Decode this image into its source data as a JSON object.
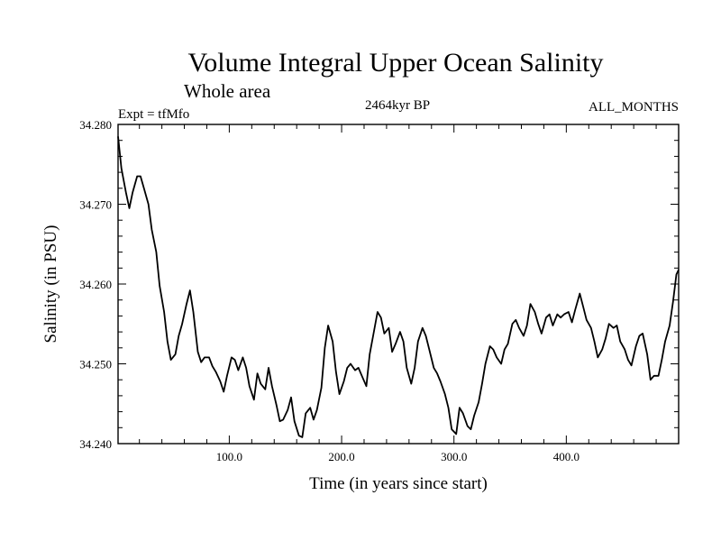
{
  "chart_data": {
    "type": "line",
    "title": "Volume Integral Upper Ocean Salinity",
    "subtitle": "Whole area",
    "experiment_label": "Expt = tfMfo",
    "period_label": "2464kyr BP",
    "months_label": "ALL_MONTHS",
    "xlabel": "Time (in years since start)",
    "ylabel": "Salinity (in PSU)",
    "xlim": [
      1,
      500
    ],
    "ylim": [
      34.24,
      34.28
    ],
    "x_ticks": [
      100,
      200,
      300,
      400
    ],
    "x_tick_labels": [
      "100.0",
      "200.0",
      "300.0",
      "400.0"
    ],
    "y_ticks": [
      34.24,
      34.25,
      34.26,
      34.27,
      34.28
    ],
    "y_tick_labels": [
      "34.240",
      "34.250",
      "34.260",
      "34.270",
      "34.280"
    ],
    "series": [
      {
        "name": "Volume Integral Upper Ocean Salinity",
        "x": [
          1,
          4,
          8,
          11,
          14,
          18,
          21,
          24,
          28,
          31,
          35,
          38,
          42,
          45,
          48,
          52,
          55,
          58,
          62,
          65,
          68,
          72,
          75,
          78,
          82,
          85,
          88,
          92,
          95,
          98,
          102,
          105,
          108,
          112,
          115,
          118,
          122,
          125,
          128,
          132,
          135,
          138,
          142,
          145,
          148,
          152,
          155,
          158,
          162,
          165,
          168,
          172,
          175,
          178,
          182,
          185,
          188,
          192,
          195,
          198,
          202,
          205,
          208,
          212,
          215,
          218,
          222,
          225,
          228,
          232,
          235,
          238,
          242,
          245,
          248,
          252,
          255,
          258,
          262,
          265,
          268,
          272,
          275,
          278,
          282,
          285,
          288,
          292,
          295,
          298,
          302,
          305,
          308,
          312,
          315,
          318,
          322,
          325,
          328,
          332,
          335,
          338,
          342,
          345,
          348,
          352,
          355,
          358,
          362,
          365,
          368,
          372,
          375,
          378,
          382,
          385,
          388,
          392,
          395,
          398,
          402,
          405,
          408,
          412,
          415,
          418,
          422,
          425,
          428,
          432,
          435,
          438,
          442,
          445,
          448,
          452,
          455,
          458,
          462,
          465,
          468,
          472,
          475,
          478,
          482,
          485,
          488,
          492,
          495,
          498,
          500
        ],
        "values": [
          34.2785,
          34.2745,
          34.2715,
          34.2695,
          34.2715,
          34.2735,
          34.2735,
          34.272,
          34.27,
          34.2668,
          34.264,
          34.2598,
          34.2565,
          34.2528,
          34.2505,
          34.2512,
          34.2535,
          34.255,
          34.2575,
          34.2592,
          34.2565,
          34.2515,
          34.2502,
          34.2508,
          34.2508,
          34.2497,
          34.249,
          34.2478,
          34.2465,
          34.2485,
          34.2508,
          34.2505,
          34.2492,
          34.2508,
          34.2495,
          34.2472,
          34.2455,
          34.2488,
          34.2475,
          34.2468,
          34.2495,
          34.2472,
          34.2448,
          34.2428,
          34.243,
          34.2442,
          34.2458,
          34.2428,
          34.241,
          34.2408,
          34.2438,
          34.2445,
          34.243,
          34.2442,
          34.247,
          34.252,
          34.2548,
          34.2528,
          34.249,
          34.2462,
          34.2478,
          34.2495,
          34.25,
          34.2492,
          34.2495,
          34.2485,
          34.2472,
          34.2512,
          34.2535,
          34.2565,
          34.2558,
          34.2538,
          34.2545,
          34.2515,
          34.2525,
          34.254,
          34.2528,
          34.2495,
          34.2475,
          34.2495,
          34.2528,
          34.2545,
          34.2535,
          34.2518,
          34.2495,
          34.2488,
          34.2478,
          34.2462,
          34.2445,
          34.2418,
          34.2412,
          34.2445,
          34.2438,
          34.2422,
          34.2418,
          34.2435,
          34.2452,
          34.2475,
          34.25,
          34.2522,
          34.2518,
          34.2508,
          34.25,
          34.2518,
          34.2525,
          34.255,
          34.2555,
          34.2545,
          34.2535,
          34.2548,
          34.2575,
          34.2565,
          34.255,
          34.2538,
          34.2558,
          34.2562,
          34.2548,
          34.2562,
          34.2558,
          34.2562,
          34.2565,
          34.2552,
          34.2568,
          34.2588,
          34.2572,
          34.2555,
          34.2545,
          34.2528,
          34.2508,
          34.2518,
          34.2532,
          34.255,
          34.2545,
          34.2548,
          34.2528,
          34.2518,
          34.2505,
          34.2498,
          34.2522,
          34.2535,
          34.2538,
          34.2512,
          34.248,
          34.2485,
          34.2485,
          34.2505,
          34.2528,
          34.2548,
          34.2578,
          34.2612,
          34.2618
        ]
      }
    ]
  }
}
